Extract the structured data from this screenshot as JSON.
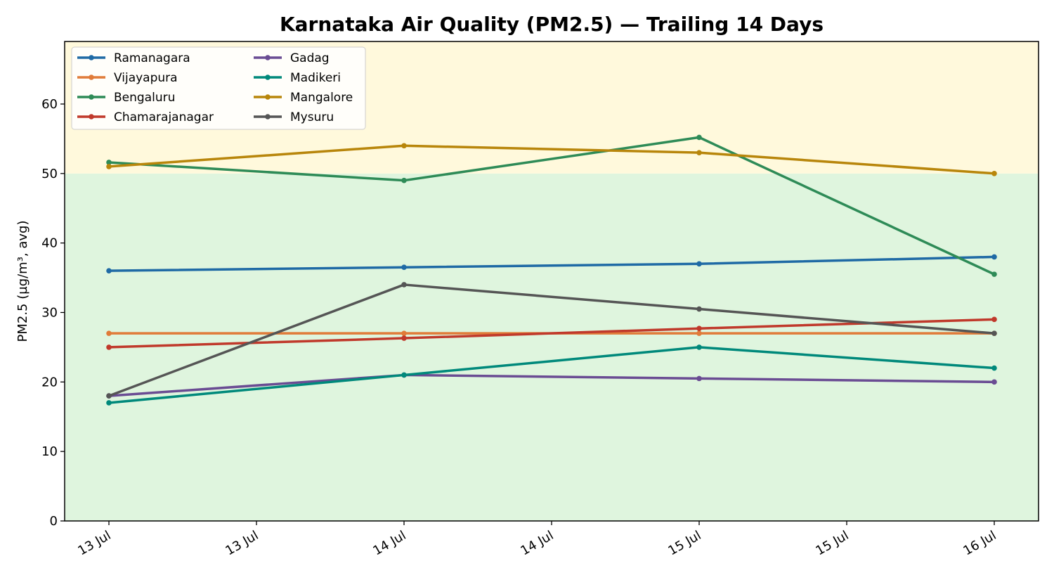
{
  "chart_data": {
    "type": "line",
    "title": "Karnataka Air Quality (PM2.5) — Trailing 14 Days",
    "xlabel": "",
    "ylabel": "PM2.5 (µg/m³, avg)",
    "x": [
      "2024-07-13",
      "2024-07-14",
      "2024-07-15",
      "2024-07-16"
    ],
    "x_ticks": [
      "13 Jul",
      "13 Jul",
      "14 Jul",
      "14 Jul",
      "15 Jul",
      "15 Jul",
      "16 Jul"
    ],
    "ylim": [
      0,
      69
    ],
    "y_ticks": [
      0,
      10,
      20,
      30,
      40,
      50,
      60
    ],
    "grid": false,
    "legend_position": "top-left",
    "bands": [
      {
        "from": 0,
        "to": 50,
        "color": "#dff5de"
      },
      {
        "from": 50,
        "to": 69,
        "color": "#fff9dc"
      }
    ],
    "series": [
      {
        "name": "Ramanagara",
        "color": "#1f6aa5",
        "values": [
          36,
          36.5,
          37,
          38
        ]
      },
      {
        "name": "Vijayapura",
        "color": "#e07b39",
        "values": [
          27,
          27,
          27,
          27
        ]
      },
      {
        "name": "Bengaluru",
        "color": "#2e8b57",
        "values": [
          51.6,
          49,
          55.2,
          35.5
        ]
      },
      {
        "name": "Chamarajanagar",
        "color": "#c0392b",
        "values": [
          25,
          26.3,
          27.7,
          29
        ]
      },
      {
        "name": "Gadag",
        "color": "#6a4c93",
        "values": [
          18,
          21,
          20.5,
          20
        ]
      },
      {
        "name": "Madikeri",
        "color": "#00897b",
        "values": [
          17,
          21,
          25,
          22
        ]
      },
      {
        "name": "Mangalore",
        "color": "#b8860b",
        "values": [
          51,
          54,
          53,
          50
        ]
      },
      {
        "name": "Mysuru",
        "color": "#555555",
        "values": [
          18,
          34,
          30.5,
          27
        ]
      }
    ]
  }
}
